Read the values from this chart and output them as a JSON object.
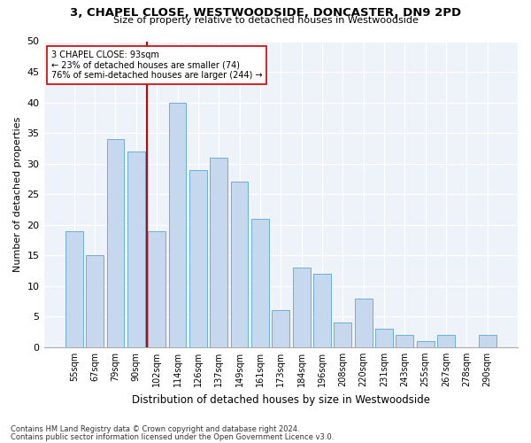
{
  "title1": "3, CHAPEL CLOSE, WESTWOODSIDE, DONCASTER, DN9 2PD",
  "title2": "Size of property relative to detached houses in Westwoodside",
  "xlabel": "Distribution of detached houses by size in Westwoodside",
  "ylabel": "Number of detached properties",
  "categories": [
    "55sqm",
    "67sqm",
    "79sqm",
    "90sqm",
    "102sqm",
    "114sqm",
    "126sqm",
    "137sqm",
    "149sqm",
    "161sqm",
    "173sqm",
    "184sqm",
    "196sqm",
    "208sqm",
    "220sqm",
    "231sqm",
    "243sqm",
    "255sqm",
    "267sqm",
    "278sqm",
    "290sqm"
  ],
  "values": [
    19,
    15,
    34,
    32,
    19,
    40,
    29,
    31,
    27,
    21,
    6,
    13,
    12,
    4,
    8,
    3,
    2,
    1,
    2,
    0,
    2
  ],
  "bar_color": "#c5d8ed",
  "bar_edge_color": "#6aaed6",
  "vline_x": 3.5,
  "vline_color": "#cc0000",
  "annotation_title": "3 CHAPEL CLOSE: 93sqm",
  "annotation_line1": "← 23% of detached houses are smaller (74)",
  "annotation_line2": "76% of semi-detached houses are larger (244) →",
  "ylim": [
    0,
    50
  ],
  "yticks": [
    0,
    5,
    10,
    15,
    20,
    25,
    30,
    35,
    40,
    45,
    50
  ],
  "footer1": "Contains HM Land Registry data © Crown copyright and database right 2024.",
  "footer2": "Contains public sector information licensed under the Open Government Licence v3.0.",
  "bg_color": "#ffffff",
  "plot_bg_color": "#eef2f9"
}
